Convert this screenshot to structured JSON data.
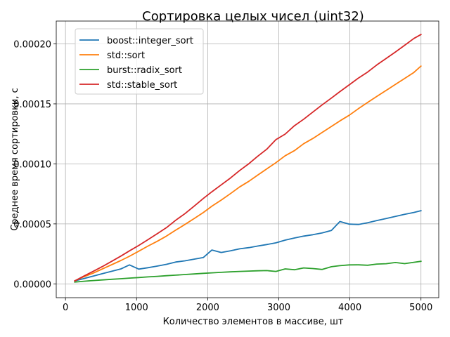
{
  "chart_data": {
    "type": "line",
    "title": "Сортировка целых чисел (uint32)",
    "xlabel": "Количество элементов в массиве, шт",
    "ylabel": "Среднее время сортировки, с",
    "xlim": [
      -130,
      5250
    ],
    "ylim": [
      -1.15e-05,
      0.000219
    ],
    "xticks": [
      0,
      1000,
      2000,
      3000,
      4000,
      5000
    ],
    "xtick_labels": [
      "0",
      "1000",
      "2000",
      "3000",
      "4000",
      "5000"
    ],
    "yticks": [
      0,
      5e-05,
      0.0001,
      0.00015,
      0.0002
    ],
    "ytick_labels": [
      "0.00000",
      "0.00005",
      "0.00010",
      "0.00015",
      "0.00020"
    ],
    "grid": true,
    "legend_position": "top-left",
    "x": [
      130,
      260,
      390,
      520,
      650,
      780,
      900,
      1030,
      1160,
      1290,
      1420,
      1550,
      1680,
      1810,
      1940,
      2060,
      2190,
      2320,
      2450,
      2580,
      2700,
      2830,
      2960,
      3090,
      3220,
      3350,
      3480,
      3610,
      3740,
      3860,
      3990,
      4120,
      4250,
      4380,
      4510,
      4640,
      4770,
      4900,
      5000
    ],
    "series": [
      {
        "name": "boost::integer_sort",
        "color": "#1f77b4",
        "values": [
          2.5e-06,
          4.5e-06,
          6.5e-06,
          8.5e-06,
          1.05e-05,
          1.25e-05,
          1.58e-05,
          1.23e-05,
          1.35e-05,
          1.48e-05,
          1.63e-05,
          1.82e-05,
          1.92e-05,
          2.06e-05,
          2.2e-05,
          2.82e-05,
          2.62e-05,
          2.75e-05,
          2.92e-05,
          3.02e-05,
          3.15e-05,
          3.28e-05,
          3.42e-05,
          3.65e-05,
          3.82e-05,
          3.98e-05,
          4.1e-05,
          4.25e-05,
          4.45e-05,
          5.2e-05,
          4.98e-05,
          4.95e-05,
          5.1e-05,
          5.28e-05,
          5.45e-05,
          5.62e-05,
          5.8e-05,
          5.95e-05,
          6.1e-05
        ]
      },
      {
        "name": "std::sort",
        "color": "#ff7f0e",
        "values": [
          2.5e-06,
          6e-06,
          9e-06,
          1.25e-05,
          1.6e-05,
          1.95e-05,
          2.3e-05,
          2.72e-05,
          3.15e-05,
          3.55e-05,
          3.98e-05,
          4.48e-05,
          4.95e-05,
          5.45e-05,
          5.95e-05,
          6.48e-05,
          6.98e-05,
          7.52e-05,
          8.08e-05,
          8.55e-05,
          9.05e-05,
          9.58e-05,
          0.000101,
          0.0001068,
          0.000111,
          0.0001168,
          0.0001212,
          0.0001262,
          0.0001312,
          0.0001358,
          0.0001405,
          0.000146,
          0.0001512,
          0.0001562,
          0.0001612,
          0.0001662,
          0.0001712,
          0.0001762,
          0.0001815
        ]
      },
      {
        "name": "burst::radix_sort",
        "color": "#2ca02c",
        "values": [
          1.5e-06,
          2.2e-06,
          2.8e-06,
          3.3e-06,
          3.8e-06,
          4.3e-06,
          4.8e-06,
          5.3e-06,
          5.8e-06,
          6.3e-06,
          6.8e-06,
          7.3e-06,
          7.8e-06,
          8.3e-06,
          8.8e-06,
          9.2e-06,
          9.6e-06,
          1e-05,
          1.04e-05,
          1.07e-05,
          1.09e-05,
          1.11e-05,
          1.04e-05,
          1.25e-05,
          1.18e-05,
          1.33e-05,
          1.28e-05,
          1.2e-05,
          1.43e-05,
          1.52e-05,
          1.58e-05,
          1.59e-05,
          1.55e-05,
          1.65e-05,
          1.68e-05,
          1.78e-05,
          1.69e-05,
          1.8e-05,
          1.88e-05
        ]
      },
      {
        "name": "std::stable_sort",
        "color": "#d62728",
        "values": [
          2.5e-06,
          6.5e-06,
          1.05e-05,
          1.45e-05,
          1.88e-05,
          2.32e-05,
          2.75e-05,
          3.2e-05,
          3.68e-05,
          4.18e-05,
          4.68e-05,
          5.3e-05,
          5.85e-05,
          6.48e-05,
          7.12e-05,
          7.68e-05,
          8.25e-05,
          8.82e-05,
          9.45e-05,
          0.0001002,
          0.0001062,
          0.0001122,
          0.0001202,
          0.0001248,
          0.0001318,
          0.0001372,
          0.0001432,
          0.0001492,
          0.0001548,
          0.0001602,
          0.0001658,
          0.0001715,
          0.0001765,
          0.0001825,
          0.0001878,
          0.0001932,
          0.0001988,
          0.0002045,
          0.0002078
        ]
      }
    ]
  }
}
